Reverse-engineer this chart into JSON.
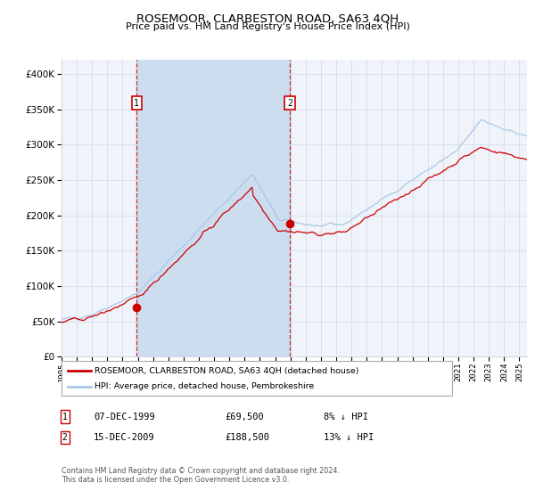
{
  "title": "ROSEMOOR, CLARBESTON ROAD, SA63 4QH",
  "subtitle": "Price paid vs. HM Land Registry's House Price Index (HPI)",
  "legend_line1": "ROSEMOOR, CLARBESTON ROAD, SA63 4QH (detached house)",
  "legend_line2": "HPI: Average price, detached house, Pembrokeshire",
  "annotation1_date": "07-DEC-1999",
  "annotation1_price": "£69,500",
  "annotation1_hpi": "8% ↓ HPI",
  "annotation2_date": "15-DEC-2009",
  "annotation2_price": "£188,500",
  "annotation2_hpi": "13% ↓ HPI",
  "footer": "Contains HM Land Registry data © Crown copyright and database right 2024.\nThis data is licensed under the Open Government Licence v3.0.",
  "hpi_color": "#a8c8e8",
  "price_color": "#cc0000",
  "plot_bg": "#f0f4fa",
  "grid_color": "#d0d8e8",
  "shade_color": "#ccddf0",
  "ylim": [
    0,
    420000
  ],
  "yticks": [
    0,
    50000,
    100000,
    150000,
    200000,
    250000,
    300000,
    350000,
    400000
  ],
  "sale1_year": 1999.92,
  "sale1_price": 69500,
  "sale2_year": 2009.96,
  "sale2_price": 188500,
  "xmin": 1995,
  "xmax": 2025.5
}
